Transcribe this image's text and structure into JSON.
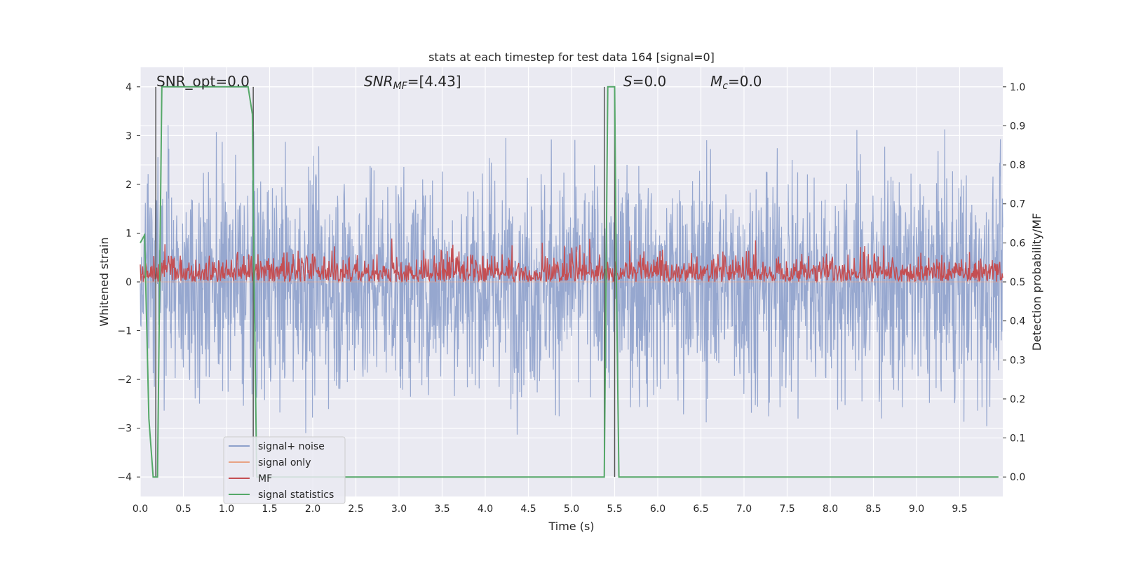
{
  "chart_data": {
    "type": "line",
    "title": "stats at each timestep for test data 164 [signal=0]",
    "xlabel": "Time (s)",
    "ylabel_left": "Whitened strain",
    "ylabel_right": "Detection probability/MF",
    "xlim": [
      0.0,
      10.0
    ],
    "ylim_left": [
      -4.4,
      4.4
    ],
    "ylim_right": [
      -0.05,
      1.05
    ],
    "xticks": [
      "0.0",
      "0.5",
      "1.0",
      "1.5",
      "2.0",
      "2.5",
      "3.0",
      "3.5",
      "4.0",
      "4.5",
      "5.0",
      "5.5",
      "6.0",
      "6.5",
      "7.0",
      "7.5",
      "8.0",
      "8.5",
      "9.0",
      "9.5"
    ],
    "yticks_left": [
      "−4",
      "−3",
      "−2",
      "−1",
      "0",
      "1",
      "2",
      "3",
      "4"
    ],
    "yticks_right": [
      "0.0",
      "0.1",
      "0.2",
      "0.3",
      "0.4",
      "0.5",
      "0.6",
      "0.7",
      "0.8",
      "0.9",
      "1.0"
    ],
    "grid": true,
    "legend_position": "lower-left",
    "annotations": {
      "snr_opt": "SNR_opt=0.0",
      "snr_mf_main": "SNR",
      "snr_mf_sub": "MF",
      "snr_mf_value": "=[4.43]",
      "s_main": "S",
      "s_value": "=0.0",
      "mc_main": "M",
      "mc_sub": "c",
      "mc_value": "=0.0"
    },
    "series": [
      {
        "name": "signal+ noise",
        "axis": "left",
        "color": "#8da0cb",
        "description_values": "whitened noise, roughly uniform amplitude, peaks around ±3.5",
        "envelope": {
          "typical_abs": 2.4,
          "peak_abs": 4.0
        }
      },
      {
        "name": "signal only",
        "axis": "left",
        "color": "#e8a384",
        "values_constant": 0.0
      },
      {
        "name": "MF",
        "axis": "right",
        "color": "#c44e52",
        "typical_range": [
          0.5,
          0.6
        ],
        "peak_max": 0.65
      },
      {
        "name": "signal statistics",
        "axis": "right",
        "color": "#55a868",
        "x": [
          0.0,
          0.05,
          0.1,
          0.15,
          0.18,
          0.2,
          0.25,
          0.3,
          1.25,
          1.3,
          1.32,
          1.35,
          2.0,
          5.35,
          5.38,
          5.42,
          5.46,
          5.5,
          5.52,
          5.55,
          5.6,
          9.95
        ],
        "values": [
          0.6,
          0.62,
          0.15,
          0.0,
          0.0,
          0.0,
          1.0,
          1.0,
          1.0,
          0.93,
          0.5,
          0.0,
          0.0,
          0.0,
          0.0,
          1.0,
          1.0,
          1.0,
          0.5,
          0.0,
          0.0,
          0.0
        ]
      }
    ],
    "vertical_markers_x": [
      0.18,
      1.31,
      5.38,
      5.5
    ]
  },
  "legend": {
    "items": [
      {
        "label": "signal+ noise",
        "color": "#8da0cb"
      },
      {
        "label": "signal only",
        "color": "#e8a384"
      },
      {
        "label": "MF",
        "color": "#c44e52"
      },
      {
        "label": "signal statistics",
        "color": "#55a868"
      }
    ]
  },
  "style": {
    "plot_background": "#eaeaf2",
    "grid_color": "#ffffff",
    "marker_color": "#555555"
  }
}
